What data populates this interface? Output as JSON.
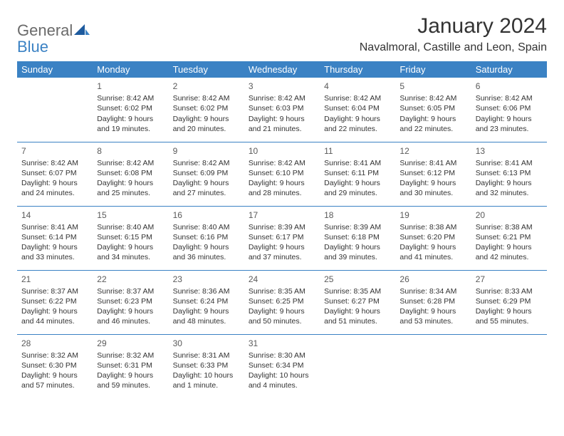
{
  "brand": {
    "general": "General",
    "blue": "Blue"
  },
  "title": "January 2024",
  "location": "Navalmoral, Castille and Leon, Spain",
  "colors": {
    "header_bg": "#3b82c4",
    "header_text": "#ffffff",
    "text": "#333333",
    "row_sep": "#3b82c4",
    "logo_gray": "#6a6a6a",
    "logo_blue": "#3b82c4",
    "background": "#ffffff"
  },
  "day_headers": [
    "Sunday",
    "Monday",
    "Tuesday",
    "Wednesday",
    "Thursday",
    "Friday",
    "Saturday"
  ],
  "weeks": [
    [
      null,
      {
        "n": "1",
        "sr": "Sunrise: 8:42 AM",
        "ss": "Sunset: 6:02 PM",
        "dl": "Daylight: 9 hours and 19 minutes."
      },
      {
        "n": "2",
        "sr": "Sunrise: 8:42 AM",
        "ss": "Sunset: 6:02 PM",
        "dl": "Daylight: 9 hours and 20 minutes."
      },
      {
        "n": "3",
        "sr": "Sunrise: 8:42 AM",
        "ss": "Sunset: 6:03 PM",
        "dl": "Daylight: 9 hours and 21 minutes."
      },
      {
        "n": "4",
        "sr": "Sunrise: 8:42 AM",
        "ss": "Sunset: 6:04 PM",
        "dl": "Daylight: 9 hours and 22 minutes."
      },
      {
        "n": "5",
        "sr": "Sunrise: 8:42 AM",
        "ss": "Sunset: 6:05 PM",
        "dl": "Daylight: 9 hours and 22 minutes."
      },
      {
        "n": "6",
        "sr": "Sunrise: 8:42 AM",
        "ss": "Sunset: 6:06 PM",
        "dl": "Daylight: 9 hours and 23 minutes."
      }
    ],
    [
      {
        "n": "7",
        "sr": "Sunrise: 8:42 AM",
        "ss": "Sunset: 6:07 PM",
        "dl": "Daylight: 9 hours and 24 minutes."
      },
      {
        "n": "8",
        "sr": "Sunrise: 8:42 AM",
        "ss": "Sunset: 6:08 PM",
        "dl": "Daylight: 9 hours and 25 minutes."
      },
      {
        "n": "9",
        "sr": "Sunrise: 8:42 AM",
        "ss": "Sunset: 6:09 PM",
        "dl": "Daylight: 9 hours and 27 minutes."
      },
      {
        "n": "10",
        "sr": "Sunrise: 8:42 AM",
        "ss": "Sunset: 6:10 PM",
        "dl": "Daylight: 9 hours and 28 minutes."
      },
      {
        "n": "11",
        "sr": "Sunrise: 8:41 AM",
        "ss": "Sunset: 6:11 PM",
        "dl": "Daylight: 9 hours and 29 minutes."
      },
      {
        "n": "12",
        "sr": "Sunrise: 8:41 AM",
        "ss": "Sunset: 6:12 PM",
        "dl": "Daylight: 9 hours and 30 minutes."
      },
      {
        "n": "13",
        "sr": "Sunrise: 8:41 AM",
        "ss": "Sunset: 6:13 PM",
        "dl": "Daylight: 9 hours and 32 minutes."
      }
    ],
    [
      {
        "n": "14",
        "sr": "Sunrise: 8:41 AM",
        "ss": "Sunset: 6:14 PM",
        "dl": "Daylight: 9 hours and 33 minutes."
      },
      {
        "n": "15",
        "sr": "Sunrise: 8:40 AM",
        "ss": "Sunset: 6:15 PM",
        "dl": "Daylight: 9 hours and 34 minutes."
      },
      {
        "n": "16",
        "sr": "Sunrise: 8:40 AM",
        "ss": "Sunset: 6:16 PM",
        "dl": "Daylight: 9 hours and 36 minutes."
      },
      {
        "n": "17",
        "sr": "Sunrise: 8:39 AM",
        "ss": "Sunset: 6:17 PM",
        "dl": "Daylight: 9 hours and 37 minutes."
      },
      {
        "n": "18",
        "sr": "Sunrise: 8:39 AM",
        "ss": "Sunset: 6:18 PM",
        "dl": "Daylight: 9 hours and 39 minutes."
      },
      {
        "n": "19",
        "sr": "Sunrise: 8:38 AM",
        "ss": "Sunset: 6:20 PM",
        "dl": "Daylight: 9 hours and 41 minutes."
      },
      {
        "n": "20",
        "sr": "Sunrise: 8:38 AM",
        "ss": "Sunset: 6:21 PM",
        "dl": "Daylight: 9 hours and 42 minutes."
      }
    ],
    [
      {
        "n": "21",
        "sr": "Sunrise: 8:37 AM",
        "ss": "Sunset: 6:22 PM",
        "dl": "Daylight: 9 hours and 44 minutes."
      },
      {
        "n": "22",
        "sr": "Sunrise: 8:37 AM",
        "ss": "Sunset: 6:23 PM",
        "dl": "Daylight: 9 hours and 46 minutes."
      },
      {
        "n": "23",
        "sr": "Sunrise: 8:36 AM",
        "ss": "Sunset: 6:24 PM",
        "dl": "Daylight: 9 hours and 48 minutes."
      },
      {
        "n": "24",
        "sr": "Sunrise: 8:35 AM",
        "ss": "Sunset: 6:25 PM",
        "dl": "Daylight: 9 hours and 50 minutes."
      },
      {
        "n": "25",
        "sr": "Sunrise: 8:35 AM",
        "ss": "Sunset: 6:27 PM",
        "dl": "Daylight: 9 hours and 51 minutes."
      },
      {
        "n": "26",
        "sr": "Sunrise: 8:34 AM",
        "ss": "Sunset: 6:28 PM",
        "dl": "Daylight: 9 hours and 53 minutes."
      },
      {
        "n": "27",
        "sr": "Sunrise: 8:33 AM",
        "ss": "Sunset: 6:29 PM",
        "dl": "Daylight: 9 hours and 55 minutes."
      }
    ],
    [
      {
        "n": "28",
        "sr": "Sunrise: 8:32 AM",
        "ss": "Sunset: 6:30 PM",
        "dl": "Daylight: 9 hours and 57 minutes."
      },
      {
        "n": "29",
        "sr": "Sunrise: 8:32 AM",
        "ss": "Sunset: 6:31 PM",
        "dl": "Daylight: 9 hours and 59 minutes."
      },
      {
        "n": "30",
        "sr": "Sunrise: 8:31 AM",
        "ss": "Sunset: 6:33 PM",
        "dl": "Daylight: 10 hours and 1 minute."
      },
      {
        "n": "31",
        "sr": "Sunrise: 8:30 AM",
        "ss": "Sunset: 6:34 PM",
        "dl": "Daylight: 10 hours and 4 minutes."
      },
      null,
      null,
      null
    ]
  ]
}
